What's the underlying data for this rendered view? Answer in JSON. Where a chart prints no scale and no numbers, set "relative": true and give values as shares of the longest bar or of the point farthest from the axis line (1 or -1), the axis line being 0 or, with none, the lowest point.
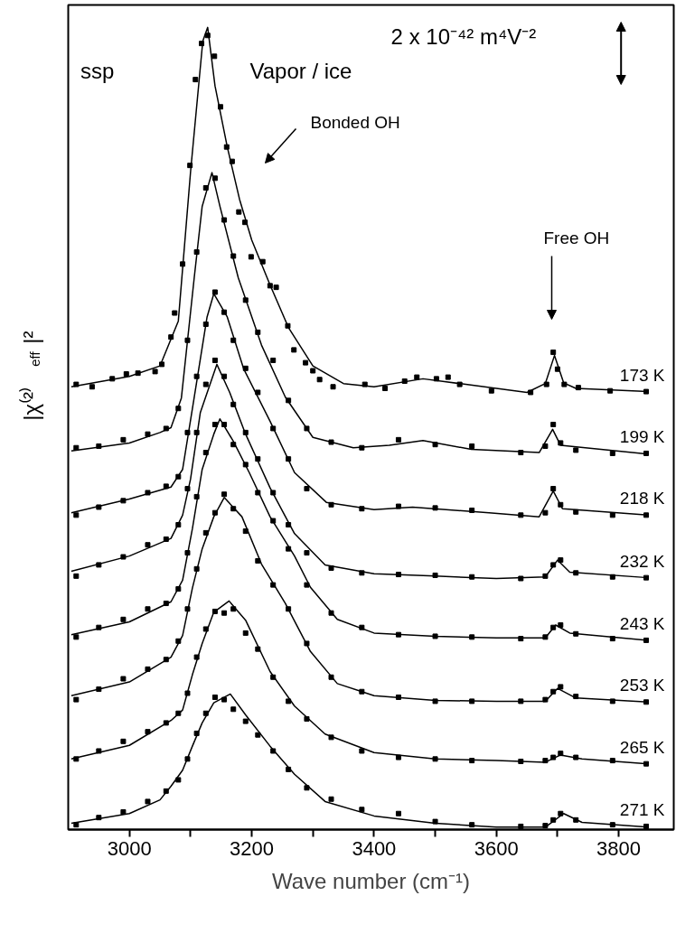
{
  "chart_data": {
    "type": "line",
    "relative": true,
    "xlabel": "Wave number (cm⁻¹)",
    "ylabel": "|χ⁽²⁾$_{eff}$|²",
    "xlim": [
      2900,
      3890
    ],
    "xticks": [
      3000,
      {
        "value": 3100,
        "label": null
      },
      3200,
      {
        "value": 3300,
        "label": null
      },
      3400,
      {
        "value": 3500,
        "label": null
      },
      3600,
      {
        "value": 3700,
        "label": null
      },
      3800
    ],
    "grid": false,
    "x": [
      2913,
      2950,
      2990,
      3030,
      3060,
      3080,
      3095,
      3110,
      3125,
      3140,
      3155,
      3170,
      3190,
      3210,
      3235,
      3260,
      3290,
      3330,
      3380,
      3440,
      3500,
      3560,
      3640,
      3680,
      3693,
      3705,
      3730,
      3790,
      3845
    ],
    "annotations": [
      "ssp",
      "Vapor / ice",
      "2 x 10⁻⁴² m⁴V⁻²",
      "Bonded OH",
      "Free OH"
    ],
    "series": [
      {
        "color": "#000000",
        "x": [
          2905,
          3000,
          3050,
          3080,
          3100,
          3120,
          3128,
          3140,
          3160,
          3180,
          3200,
          3230,
          3260,
          3300,
          3350,
          3400,
          3480,
          3550,
          3650,
          3680,
          3695,
          3710,
          3730,
          3848
        ],
        "values": [
          0.552,
          0.565,
          0.578,
          0.634,
          0.82,
          0.983,
          1.0,
          0.927,
          0.851,
          0.786,
          0.735,
          0.679,
          0.626,
          0.578,
          0.556,
          0.552,
          0.562,
          0.555,
          0.545,
          0.556,
          0.591,
          0.557,
          0.55,
          0.546
        ]
      },
      {
        "type": "scatter",
        "name": "173 K",
        "color": "#000000",
        "marker": "square",
        "x": [
          2913,
          2939,
          2972,
          2995,
          3014,
          3042,
          3053,
          3068,
          3074,
          3087,
          3099,
          3108,
          3118,
          3128,
          3139,
          3149,
          3159,
          3168,
          3179,
          3189,
          3199,
          3218,
          3230,
          3240,
          3259,
          3269,
          3288,
          3300,
          3311,
          3333,
          3385,
          3418,
          3450,
          3470,
          3502,
          3521,
          3540,
          3592,
          3656,
          3682,
          3693,
          3700,
          3711,
          3734,
          3786,
          3845
        ],
        "values": [
          0.555,
          0.552,
          0.562,
          0.568,
          0.569,
          0.571,
          0.58,
          0.614,
          0.644,
          0.705,
          0.828,
          0.935,
          0.98,
          0.99,
          0.964,
          0.901,
          0.851,
          0.833,
          0.77,
          0.757,
          0.714,
          0.708,
          0.678,
          0.676,
          0.628,
          0.598,
          0.582,
          0.572,
          0.561,
          0.552,
          0.555,
          0.55,
          0.559,
          0.564,
          0.562,
          0.564,
          0.555,
          0.547,
          0.545,
          0.555,
          0.595,
          0.574,
          0.555,
          0.551,
          0.547,
          0.546
        ]
      },
      {
        "color": "#000000",
        "x": [
          2905,
          3000,
          3050,
          3068,
          3085,
          3106,
          3119,
          3135,
          3148,
          3178,
          3216,
          3255,
          3300,
          3366,
          3425,
          3480,
          3559,
          3670,
          3692,
          3705,
          3848
        ],
        "values": [
          0.472,
          0.482,
          0.495,
          0.501,
          0.538,
          0.688,
          0.777,
          0.819,
          0.777,
          0.688,
          0.604,
          0.539,
          0.489,
          0.476,
          0.479,
          0.485,
          0.474,
          0.47,
          0.499,
          0.479,
          0.468
        ]
      },
      {
        "type": "scatter",
        "name": "199 K",
        "color": "#000000",
        "marker": "square",
        "values": [
          0.476,
          0.478,
          0.486,
          0.493,
          0.5,
          0.525,
          0.61,
          0.72,
          0.8,
          0.812,
          0.76,
          0.715,
          0.66,
          0.62,
          0.585,
          0.535,
          0.5,
          0.483,
          0.476,
          0.486,
          0.48,
          0.478,
          0.47,
          0.478,
          0.505,
          0.482,
          0.473,
          0.469,
          0.469
        ]
      },
      {
        "color": "#000000",
        "x": [
          2905,
          3000,
          3068,
          3087,
          3106,
          3127,
          3138,
          3160,
          3187,
          3230,
          3270,
          3322,
          3400,
          3463,
          3588,
          3670,
          3693,
          3708,
          3848
        ],
        "values": [
          0.395,
          0.412,
          0.427,
          0.449,
          0.539,
          0.639,
          0.668,
          0.639,
          0.574,
          0.509,
          0.445,
          0.408,
          0.399,
          0.402,
          0.395,
          0.39,
          0.422,
          0.4,
          0.392
        ]
      },
      {
        "type": "scatter",
        "name": "218 K",
        "color": "#000000",
        "marker": "square",
        "values": [
          0.392,
          0.402,
          0.41,
          0.42,
          0.428,
          0.44,
          0.495,
          0.565,
          0.63,
          0.67,
          0.645,
          0.61,
          0.575,
          0.545,
          0.5,
          0.462,
          0.425,
          0.405,
          0.4,
          0.403,
          0.401,
          0.398,
          0.392,
          0.395,
          0.425,
          0.405,
          0.396,
          0.392,
          0.392
        ]
      },
      {
        "color": "#000000",
        "x": [
          2905,
          3000,
          3068,
          3087,
          3100,
          3116,
          3143,
          3164,
          3190,
          3230,
          3270,
          3320,
          3400,
          3500,
          3600,
          3680,
          3700,
          3720,
          3848
        ],
        "values": [
          0.322,
          0.341,
          0.363,
          0.392,
          0.437,
          0.52,
          0.58,
          0.545,
          0.493,
          0.426,
          0.369,
          0.33,
          0.319,
          0.316,
          0.313,
          0.315,
          0.336,
          0.321,
          0.314
        ]
      },
      {
        "type": "scatter",
        "name": "232 K",
        "color": "#000000",
        "marker": "square",
        "values": [
          0.316,
          0.33,
          0.34,
          0.355,
          0.362,
          0.38,
          0.425,
          0.495,
          0.555,
          0.585,
          0.565,
          0.53,
          0.495,
          0.462,
          0.42,
          0.38,
          0.345,
          0.326,
          0.32,
          0.318,
          0.317,
          0.315,
          0.313,
          0.316,
          0.33,
          0.336,
          0.32,
          0.315,
          0.314
        ]
      },
      {
        "color": "#000000",
        "x": [
          2905,
          3000,
          3068,
          3087,
          3103,
          3119,
          3138,
          3148,
          3170,
          3196,
          3230,
          3270,
          3296,
          3340,
          3400,
          3500,
          3600,
          3680,
          3697,
          3720,
          3848
        ],
        "values": [
          0.243,
          0.259,
          0.284,
          0.311,
          0.375,
          0.449,
          0.493,
          0.512,
          0.484,
          0.445,
          0.39,
          0.341,
          0.302,
          0.262,
          0.245,
          0.241,
          0.239,
          0.239,
          0.255,
          0.245,
          0.236
        ]
      },
      {
        "type": "scatter",
        "name": "243 K",
        "color": "#000000",
        "marker": "square",
        "values": [
          0.24,
          0.252,
          0.262,
          0.275,
          0.282,
          0.3,
          0.345,
          0.415,
          0.47,
          0.505,
          0.505,
          0.48,
          0.455,
          0.42,
          0.385,
          0.35,
          0.305,
          0.27,
          0.252,
          0.243,
          0.241,
          0.24,
          0.238,
          0.24,
          0.252,
          0.255,
          0.244,
          0.238,
          0.236
        ]
      },
      {
        "color": "#000000",
        "x": [
          2905,
          3000,
          3068,
          3087,
          3103,
          3119,
          3138,
          3155,
          3184,
          3216,
          3255,
          3296,
          3340,
          3400,
          3500,
          3600,
          3680,
          3700,
          3730,
          3848
        ],
        "values": [
          0.167,
          0.184,
          0.215,
          0.242,
          0.301,
          0.35,
          0.39,
          0.414,
          0.39,
          0.331,
          0.282,
          0.222,
          0.182,
          0.167,
          0.161,
          0.16,
          0.16,
          0.176,
          0.164,
          0.159
        ]
      },
      {
        "type": "scatter",
        "name": "253 K",
        "color": "#000000",
        "marker": "square",
        "values": [
          0.162,
          0.175,
          0.188,
          0.2,
          0.212,
          0.235,
          0.275,
          0.325,
          0.37,
          0.395,
          0.418,
          0.4,
          0.372,
          0.335,
          0.305,
          0.275,
          0.232,
          0.19,
          0.172,
          0.165,
          0.16,
          0.16,
          0.16,
          0.162,
          0.172,
          0.178,
          0.166,
          0.16,
          0.159
        ]
      },
      {
        "color": "#000000",
        "x": [
          2905,
          3000,
          3068,
          3087,
          3103,
          3119,
          3138,
          3163,
          3190,
          3230,
          3270,
          3320,
          3400,
          3500,
          3600,
          3680,
          3705,
          3740,
          3848
        ],
        "values": [
          0.088,
          0.105,
          0.136,
          0.149,
          0.193,
          0.232,
          0.271,
          0.285,
          0.261,
          0.197,
          0.154,
          0.119,
          0.096,
          0.088,
          0.086,
          0.084,
          0.093,
          0.088,
          0.082
        ]
      },
      {
        "type": "scatter",
        "name": "265 K",
        "color": "#000000",
        "marker": "square",
        "values": [
          0.088,
          0.098,
          0.11,
          0.122,
          0.133,
          0.145,
          0.17,
          0.215,
          0.25,
          0.272,
          0.27,
          0.275,
          0.245,
          0.225,
          0.19,
          0.16,
          0.138,
          0.115,
          0.098,
          0.09,
          0.088,
          0.086,
          0.085,
          0.086,
          0.09,
          0.095,
          0.09,
          0.086,
          0.082
        ]
      },
      {
        "color": "#000000",
        "x": [
          2905,
          3000,
          3050,
          3068,
          3087,
          3103,
          3119,
          3138,
          3165,
          3190,
          3230,
          3270,
          3320,
          3400,
          3500,
          3600,
          3680,
          3710,
          3740,
          3848
        ],
        "values": [
          0.008,
          0.02,
          0.037,
          0.054,
          0.074,
          0.104,
          0.133,
          0.158,
          0.169,
          0.143,
          0.104,
          0.069,
          0.035,
          0.017,
          0.008,
          0.003,
          0.003,
          0.02,
          0.009,
          0.003
        ]
      },
      {
        "type": "scatter",
        "name": "271 K",
        "color": "#000000",
        "marker": "square",
        "values": [
          0.006,
          0.015,
          0.022,
          0.035,
          0.048,
          0.062,
          0.088,
          0.12,
          0.145,
          0.165,
          0.162,
          0.15,
          0.135,
          0.118,
          0.098,
          0.075,
          0.052,
          0.038,
          0.025,
          0.02,
          0.01,
          0.006,
          0.004,
          0.005,
          0.012,
          0.02,
          0.012,
          0.006,
          0.004
        ]
      }
    ]
  }
}
